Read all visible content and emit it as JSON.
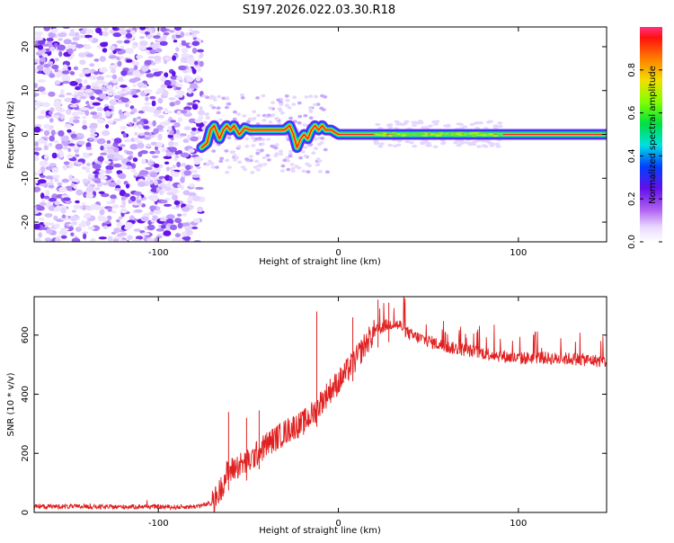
{
  "title": "S197.2026.022.03.30.R18",
  "chart_data": [
    {
      "type": "heatmap",
      "xlabel": "Height of straight line (km)",
      "ylabel": "Frequency (Hz)",
      "xlim": [
        -169,
        149
      ],
      "ylim": [
        -24.5,
        24.5
      ],
      "xticks": [
        -100,
        0,
        100
      ],
      "xtick_labels": [
        "-100",
        "0",
        "100"
      ],
      "yticks": [
        -20,
        -10,
        0,
        10,
        20
      ],
      "ytick_labels": [
        "-20",
        "-10",
        "0",
        "10",
        "20"
      ],
      "noise_region_x": [
        -169,
        -76
      ],
      "ridge": {
        "x": [
          -76,
          -73,
          -71,
          -69,
          -66,
          -64,
          -62,
          -60,
          -58,
          -55,
          -52,
          -49,
          -45,
          -40,
          -35,
          -30,
          -27,
          -25,
          -23,
          -21,
          -19,
          -17,
          -15,
          -13,
          -11,
          -9,
          -7,
          -4,
          -2,
          0,
          10,
          20,
          40,
          60,
          80,
          100,
          120,
          149
        ],
        "y": [
          -3,
          -2,
          1,
          2,
          -1,
          1,
          2,
          1,
          2,
          0,
          1.5,
          1,
          1,
          1,
          1,
          1,
          2,
          0,
          -3,
          -1,
          0,
          -1,
          1,
          2,
          1,
          2,
          1,
          1,
          0.5,
          0,
          0,
          0,
          0,
          0,
          0,
          0,
          0,
          0
        ]
      },
      "colorbar": {
        "label": "Normalized spectral amplitude",
        "range": [
          0,
          1
        ],
        "ticks": [
          0.0,
          0.2,
          0.4,
          0.6,
          0.8
        ],
        "tick_labels": [
          "0.0",
          "0.2",
          "0.4",
          "0.6",
          "0.8"
        ]
      }
    },
    {
      "type": "line",
      "xlabel": "Height of straight line (km)",
      "ylabel": "SNR (10 * v/v)",
      "xlim": [
        -169,
        149
      ],
      "ylim": [
        0,
        730
      ],
      "xticks": [
        -100,
        0,
        100
      ],
      "xtick_labels": [
        "-100",
        "0",
        "100"
      ],
      "yticks": [
        0,
        200,
        400,
        600
      ],
      "ytick_labels": [
        "0",
        "200",
        "400",
        "600"
      ],
      "color": "#e02020",
      "series": [
        {
          "name": "SNR",
          "x": [
            -169,
            -150,
            -130,
            -110,
            -90,
            -80,
            -70,
            -66,
            -62,
            -58,
            -55,
            -50,
            -45,
            -40,
            -35,
            -30,
            -25,
            -20,
            -15,
            -12,
            -10,
            -5,
            0,
            5,
            10,
            15,
            20,
            25,
            30,
            35,
            40,
            50,
            60,
            70,
            80,
            90,
            100,
            110,
            120,
            130,
            140,
            149
          ],
          "values": [
            20,
            20,
            18,
            20,
            18,
            20,
            30,
            70,
            130,
            150,
            160,
            170,
            200,
            230,
            250,
            270,
            290,
            300,
            330,
            350,
            370,
            410,
            440,
            480,
            520,
            570,
            610,
            630,
            640,
            630,
            600,
            580,
            560,
            550,
            540,
            530,
            520,
            525,
            520,
            520,
            515,
            510
          ]
        }
      ],
      "spikes": [
        {
          "x": -61,
          "value": 340
        },
        {
          "x": -51,
          "value": 320
        },
        {
          "x": -44,
          "value": 345
        },
        {
          "x": -12,
          "value": 680
        },
        {
          "x": 8,
          "value": 660
        },
        {
          "x": 22,
          "value": 720
        },
        {
          "x": 28,
          "value": 710
        }
      ]
    }
  ]
}
